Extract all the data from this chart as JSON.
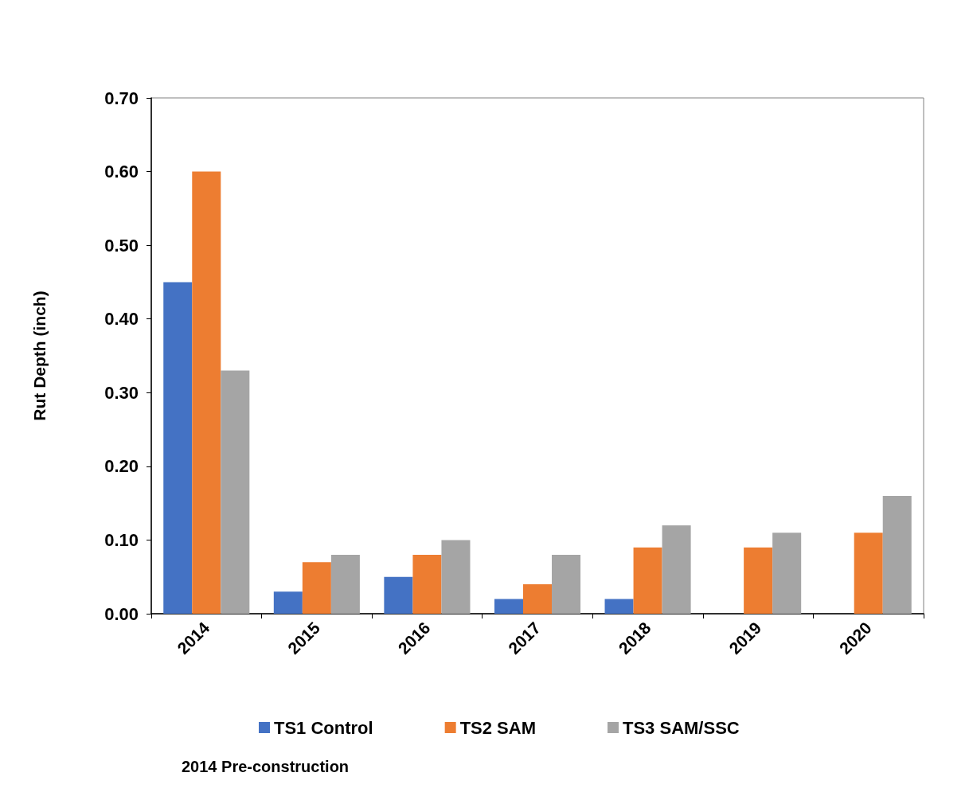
{
  "chart_data": {
    "type": "bar",
    "ylabel": "Rut Depth (inch)",
    "categories": [
      "2014",
      "2015",
      "2016",
      "2017",
      "2018",
      "2019",
      "2020"
    ],
    "series": [
      {
        "name": "TS1 Control",
        "color": "#4472c4",
        "values": [
          0.45,
          0.03,
          0.05,
          0.02,
          0.02,
          null,
          null
        ]
      },
      {
        "name": "TS2 SAM",
        "color": "#ed7d31",
        "values": [
          0.6,
          0.07,
          0.08,
          0.04,
          0.09,
          0.09,
          0.11
        ]
      },
      {
        "name": "TS3 SAM/SSC",
        "color": "#a5a5a5",
        "values": [
          0.33,
          0.08,
          0.1,
          0.08,
          0.12,
          0.11,
          0.16
        ]
      }
    ],
    "ylim": [
      0,
      0.7
    ],
    "yticks": [
      {
        "value": 0,
        "label": "0.00"
      },
      {
        "value": 0.1,
        "label": "0.10"
      },
      {
        "value": 0.2,
        "label": "0.20"
      },
      {
        "value": 0.3,
        "label": "0.30"
      },
      {
        "value": 0.4,
        "label": "0.40"
      },
      {
        "value": 0.5,
        "label": "0.50"
      },
      {
        "value": 0.6,
        "label": "0.60"
      },
      {
        "value": 0.7,
        "label": "0.70"
      }
    ],
    "grid": false,
    "legend": "bottom",
    "annotations": [
      "2014 Pre-construction"
    ]
  }
}
